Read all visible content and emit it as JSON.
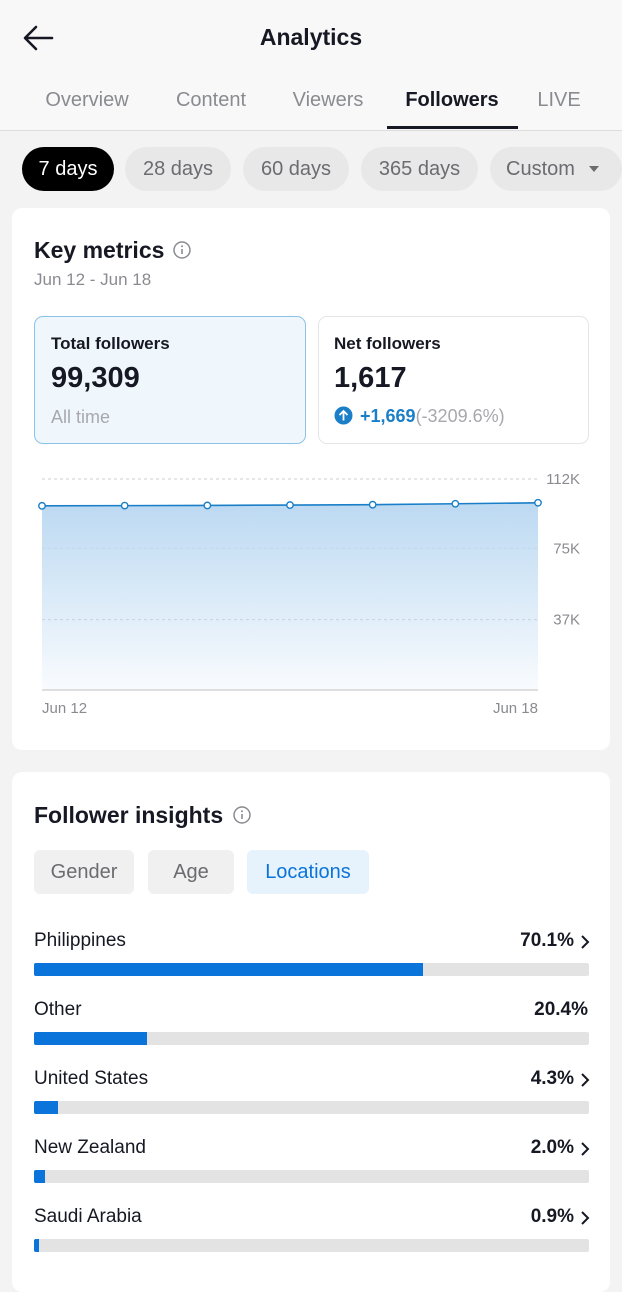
{
  "header": {
    "title": "Analytics"
  },
  "tabs": {
    "items": [
      "Overview",
      "Content",
      "Viewers",
      "Followers",
      "LIVE"
    ],
    "active": 3
  },
  "ranges": {
    "items": [
      "7 days",
      "28 days",
      "60 days",
      "365 days",
      "Custom"
    ],
    "active": 0
  },
  "key_metrics": {
    "title": "Key metrics",
    "date_range": "Jun 12 - Jun 18",
    "total": {
      "label": "Total followers",
      "value": "99,309",
      "note": "All time"
    },
    "net": {
      "label": "Net followers",
      "value": "1,617",
      "change": "+1,669",
      "change_pct": "(-3209.6%)"
    }
  },
  "line_chart": {
    "type": "line",
    "categories": [
      "Jun 12",
      null,
      null,
      null,
      null,
      null,
      "Jun 18"
    ],
    "values": [
      97700,
      97800,
      97900,
      98100,
      98300,
      98800,
      99309
    ],
    "color": "#1a7fc8",
    "ylim": [
      0,
      112000
    ],
    "yticks": [
      {
        "value": 112000,
        "label": "112K"
      },
      {
        "value": 75000,
        "label": "75K"
      },
      {
        "value": 37000,
        "label": "37K"
      }
    ],
    "grid": true
  },
  "insights": {
    "title": "Follower insights",
    "segments": [
      "Gender",
      "Age",
      "Locations"
    ],
    "active": 2
  },
  "locations": {
    "type": "bar",
    "categories": [
      "Philippines",
      "Other",
      "United States",
      "New Zealand",
      "Saudi Arabia"
    ],
    "values": [
      70.1,
      20.4,
      4.3,
      2.0,
      0.9
    ],
    "value_labels": [
      "70.1%",
      "20.4%",
      "4.3%",
      "2.0%",
      "0.9%"
    ],
    "chevron": [
      true,
      false,
      true,
      true,
      true
    ],
    "xlim": [
      0,
      100
    ],
    "color": "#0a74da"
  }
}
